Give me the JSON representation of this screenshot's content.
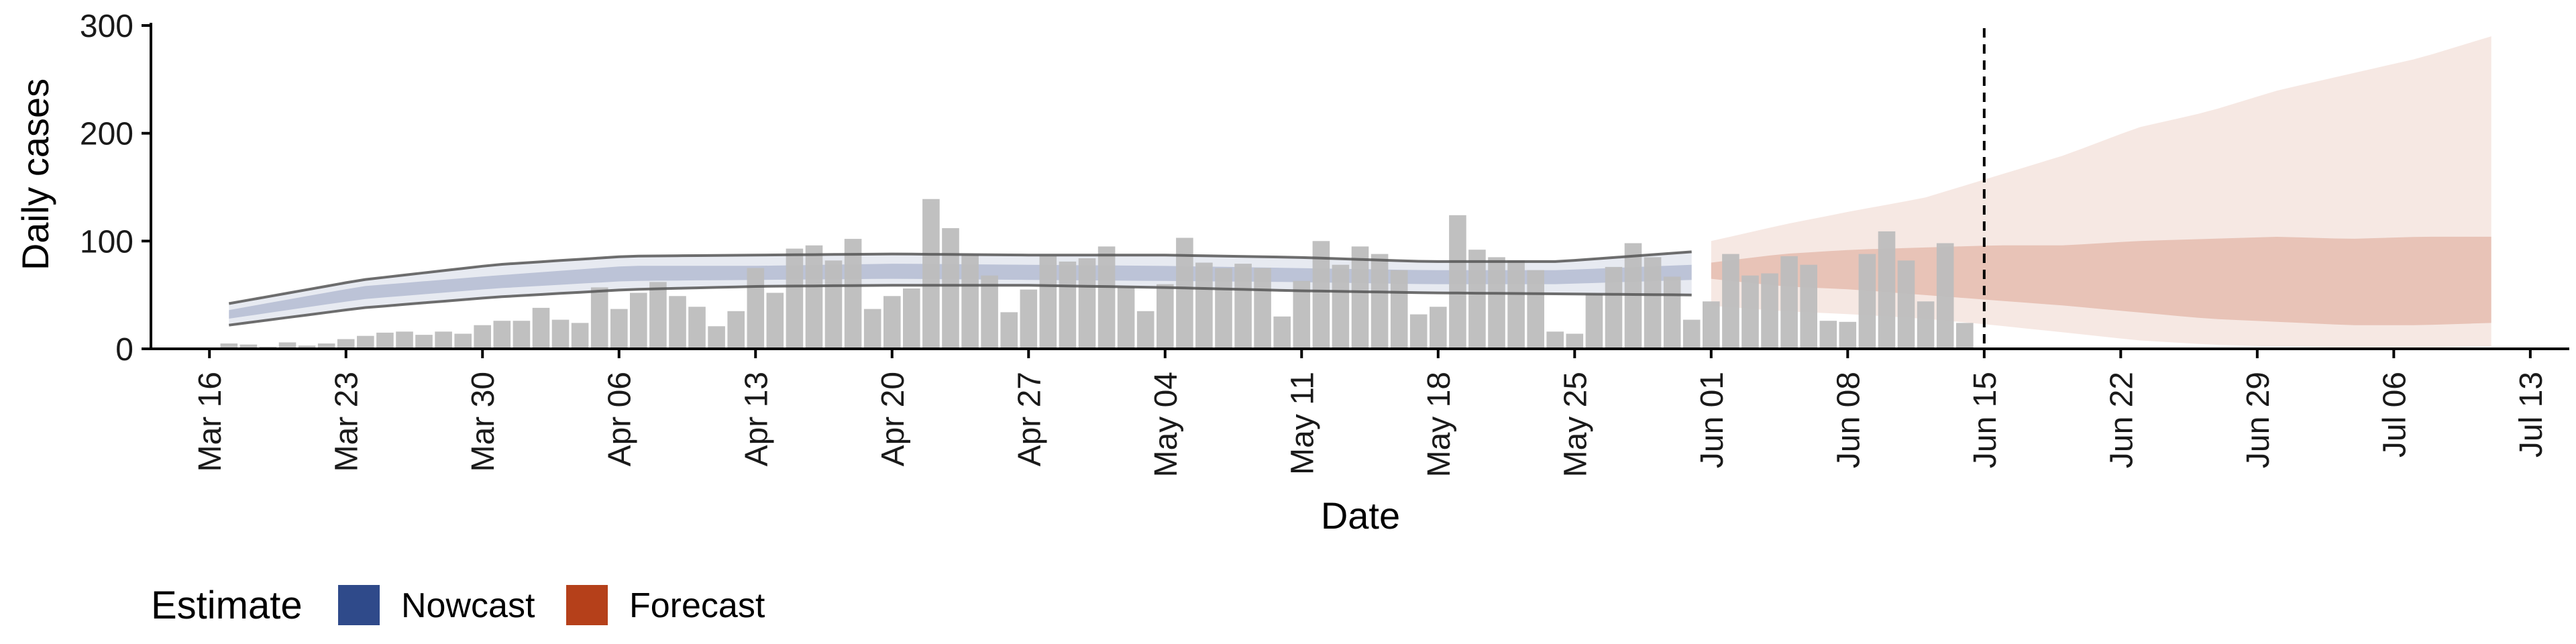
{
  "chart_data": {
    "type": "bar",
    "ylabel": "Daily cases",
    "xlabel": "Date",
    "ylim": [
      0,
      300
    ],
    "xlim": [
      "2020-03-13",
      "2020-07-15"
    ],
    "y_ticks": [
      0,
      100,
      200,
      300
    ],
    "y_tick_labels": [
      "0",
      "100",
      "200",
      "300"
    ],
    "x_ticks": [
      "2020-03-16",
      "2020-03-23",
      "2020-03-30",
      "2020-04-06",
      "2020-04-13",
      "2020-04-20",
      "2020-04-27",
      "2020-05-04",
      "2020-05-11",
      "2020-05-18",
      "2020-05-25",
      "2020-06-01",
      "2020-06-08",
      "2020-06-15",
      "2020-06-22",
      "2020-06-29",
      "2020-07-06",
      "2020-07-13"
    ],
    "x_tick_labels": [
      "Mar 16",
      "Mar 23",
      "Mar 30",
      "Apr 06",
      "Apr 13",
      "Apr 20",
      "Apr 27",
      "May 04",
      "May 11",
      "May 18",
      "May 25",
      "Jun 01",
      "Jun 08",
      "Jun 15",
      "Jun 22",
      "Jun 29",
      "Jul 06",
      "Jul 13"
    ],
    "grid": false,
    "vline_date": "2020-06-15",
    "colors": {
      "bars": "#bdbdbd",
      "nowcast": "#3b4f8c",
      "forecast": "#b5401a",
      "ci_line": "#555555",
      "axis": "#000000"
    },
    "daily_cases": {
      "start_date": "2020-03-17",
      "values": [
        5,
        4,
        2,
        6,
        3,
        5,
        9,
        12,
        15,
        16,
        13,
        16,
        14,
        22,
        26,
        26,
        38,
        27,
        24,
        57,
        37,
        52,
        62,
        49,
        39,
        21,
        35,
        75,
        52,
        93,
        96,
        82,
        102,
        37,
        49,
        56,
        139,
        112,
        87,
        68,
        34,
        55,
        86,
        81,
        84,
        95,
        57,
        35,
        60,
        103,
        80,
        75,
        79,
        75,
        30,
        63,
        100,
        78,
        95,
        88,
        73,
        32,
        39,
        124,
        92,
        85,
        82,
        73,
        16,
        14,
        51,
        76,
        98,
        85,
        67,
        27,
        44,
        88,
        68,
        70,
        86,
        78,
        26,
        25,
        88,
        109,
        82,
        44,
        98,
        24
      ]
    },
    "nowcast": {
      "start_date": "2020-03-17",
      "end_date": "2020-05-31",
      "median": [
        32,
        52,
        62,
        70,
        70,
        72,
        71,
        70,
        68,
        66,
        66,
        71
      ],
      "inner_lo": [
        28,
        46,
        56,
        63,
        64,
        65,
        64,
        63,
        62,
        60,
        60,
        64
      ],
      "inner_hi": [
        36,
        58,
        68,
        77,
        77,
        79,
        78,
        77,
        75,
        73,
        73,
        78
      ],
      "outer_lo": [
        22,
        38,
        48,
        55,
        58,
        59,
        59,
        57,
        54,
        52,
        51,
        50
      ],
      "outer_hi": [
        42,
        64,
        78,
        86,
        87,
        88,
        87,
        87,
        85,
        81,
        81,
        90
      ]
    },
    "forecast": {
      "start_date": "2020-06-01",
      "end_date": "2020-07-11",
      "inner_lo": [
        65,
        58,
        55,
        50,
        45,
        40,
        34,
        28,
        25,
        22,
        22,
        24
      ],
      "inner_hi": [
        80,
        88,
        92,
        94,
        96,
        96,
        100,
        102,
        104,
        102,
        104,
        104
      ],
      "outer_lo": [
        40,
        35,
        32,
        28,
        22,
        15,
        8,
        4,
        2,
        1,
        1,
        2
      ],
      "outer_hi": [
        100,
        115,
        128,
        140,
        160,
        180,
        205,
        220,
        240,
        255,
        270,
        290
      ]
    }
  },
  "legend": {
    "title": "Estimate",
    "items": [
      {
        "label": "Nowcast",
        "color": "#2f4a8a"
      },
      {
        "label": "Forecast",
        "color": "#b5401a"
      }
    ]
  }
}
